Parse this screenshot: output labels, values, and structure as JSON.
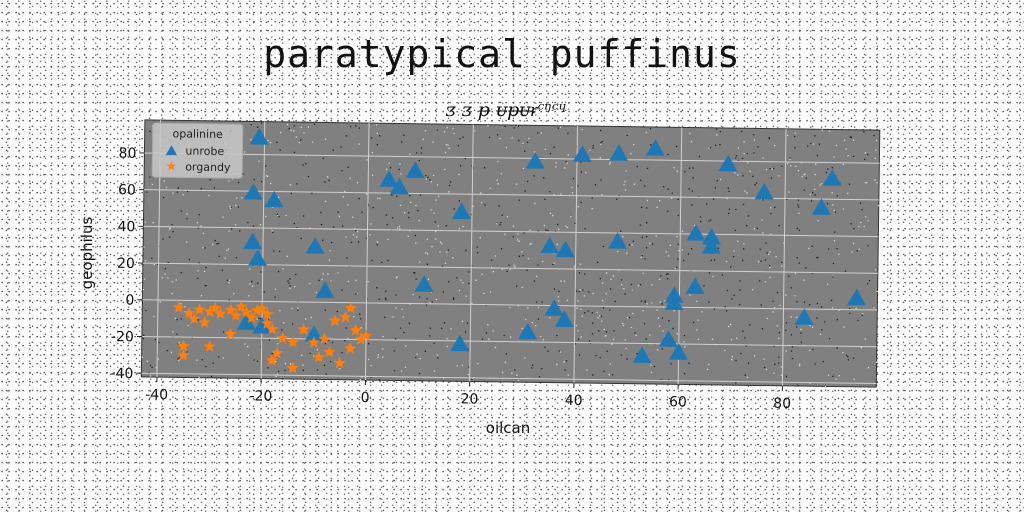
{
  "chart_data": {
    "type": "scatter",
    "title": "paratypical puffinus",
    "subtitle": "ᴣ ᴣ ᵽ ᵾᵽᵾᵲᶜᵑᶜᶣ",
    "xlabel": "oilcan",
    "ylabel": "geophilus",
    "xlim": [
      -43,
      98
    ],
    "ylim": [
      -42,
      98
    ],
    "xticks": [
      -40,
      -20,
      0,
      20,
      40,
      60,
      80
    ],
    "yticks": [
      -40,
      -20,
      0,
      20,
      40,
      60,
      80
    ],
    "grid": true,
    "legend": {
      "title": "opalinine",
      "placement": "top-left"
    },
    "series": [
      {
        "name": "unrobe",
        "marker": "triangle",
        "color": "#1f77b4",
        "points": [
          [
            -21,
            89
          ],
          [
            -22,
            59
          ],
          [
            -18,
            55
          ],
          [
            -22,
            32
          ],
          [
            -21,
            23
          ],
          [
            -10,
            30
          ],
          [
            -8,
            6
          ],
          [
            -10,
            -18
          ],
          [
            -20,
            -14
          ],
          [
            -23,
            -12
          ],
          [
            4,
            67
          ],
          [
            6,
            63
          ],
          [
            9,
            72
          ],
          [
            18,
            50
          ],
          [
            11,
            10
          ],
          [
            18,
            -22
          ],
          [
            32,
            78
          ],
          [
            41,
            82
          ],
          [
            48,
            83
          ],
          [
            55,
            86
          ],
          [
            69,
            78
          ],
          [
            76,
            63
          ],
          [
            87,
            55
          ],
          [
            89,
            71
          ],
          [
            35,
            32
          ],
          [
            38,
            30
          ],
          [
            48,
            35
          ],
          [
            63,
            40
          ],
          [
            66,
            38
          ],
          [
            66,
            33
          ],
          [
            63,
            11
          ],
          [
            59,
            2
          ],
          [
            59,
            6
          ],
          [
            94,
            6
          ],
          [
            84,
            -5
          ],
          [
            31,
            -15
          ],
          [
            36,
            -2
          ],
          [
            38,
            -8
          ],
          [
            58,
            -18
          ],
          [
            53,
            -27
          ],
          [
            60,
            -25
          ]
        ]
      },
      {
        "name": "organdy",
        "marker": "star",
        "color": "#ff7f0e",
        "points": [
          [
            -36,
            -4
          ],
          [
            -34,
            -7
          ],
          [
            -32,
            -5
          ],
          [
            -33,
            -10
          ],
          [
            -31,
            -12
          ],
          [
            -30,
            -6
          ],
          [
            -29,
            -4
          ],
          [
            -28,
            -7
          ],
          [
            -26,
            -5
          ],
          [
            -25,
            -8
          ],
          [
            -24,
            -3
          ],
          [
            -23,
            -6
          ],
          [
            -22,
            -9
          ],
          [
            -21,
            -5
          ],
          [
            -20,
            -4
          ],
          [
            -19,
            -7
          ],
          [
            -19,
            -12
          ],
          [
            -18,
            -15
          ],
          [
            -16,
            -20
          ],
          [
            -17,
            -28
          ],
          [
            -18,
            -32
          ],
          [
            -14,
            -36
          ],
          [
            -14,
            -22
          ],
          [
            -30,
            -25
          ],
          [
            -35,
            -25
          ],
          [
            -35,
            -30
          ],
          [
            -26,
            -18
          ],
          [
            -12,
            -15
          ],
          [
            -10,
            -22
          ],
          [
            -9,
            -30
          ],
          [
            -7,
            -27
          ],
          [
            -6,
            -10
          ],
          [
            -4,
            -8
          ],
          [
            -3,
            -3
          ],
          [
            -2,
            -15
          ],
          [
            -3,
            -25
          ],
          [
            0,
            -18
          ],
          [
            -1,
            -20
          ],
          [
            -8,
            -20
          ],
          [
            -5,
            -33
          ]
        ]
      }
    ]
  }
}
